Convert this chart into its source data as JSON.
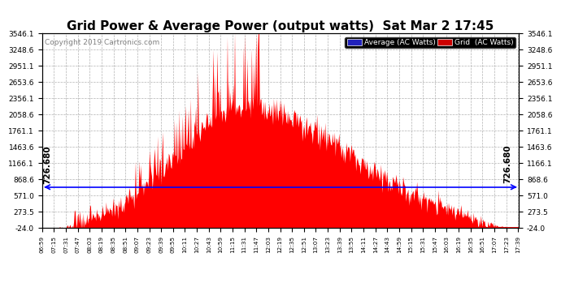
{
  "title": "Grid Power & Average Power (output watts)  Sat Mar 2 17:45",
  "copyright": "Copyright 2019 Cartronics.com",
  "avg_label": "Average (AC Watts)",
  "grid_label": "Grid  (AC Watts)",
  "avg_value": 726.68,
  "y_min": -24.0,
  "y_max": 3546.1,
  "y_ticks": [
    -24.0,
    273.5,
    571.0,
    868.6,
    1166.1,
    1463.6,
    1761.1,
    2058.6,
    2356.1,
    2653.6,
    2951.1,
    3248.6,
    3546.1
  ],
  "y_tick_labels": [
    "-24.0",
    "273.5",
    "571.0",
    "868.6",
    "1166.1",
    "1463.6",
    "1761.1",
    "2058.6",
    "2356.1",
    "2653.6",
    "2951.1",
    "3248.6",
    "3546.1"
  ],
  "bg_color": "#ffffff",
  "plot_bg": "#ffffff",
  "grid_color": "#aaaaaa",
  "fill_color": "#ff0000",
  "avg_line_color": "#0000ff",
  "legend_avg_bg": "#2222bb",
  "legend_grid_bg": "#cc0000",
  "title_fontsize": 11,
  "copyright_fontsize": 6.5,
  "tick_fontsize": 6.5,
  "avg_text_fontsize": 7.5
}
